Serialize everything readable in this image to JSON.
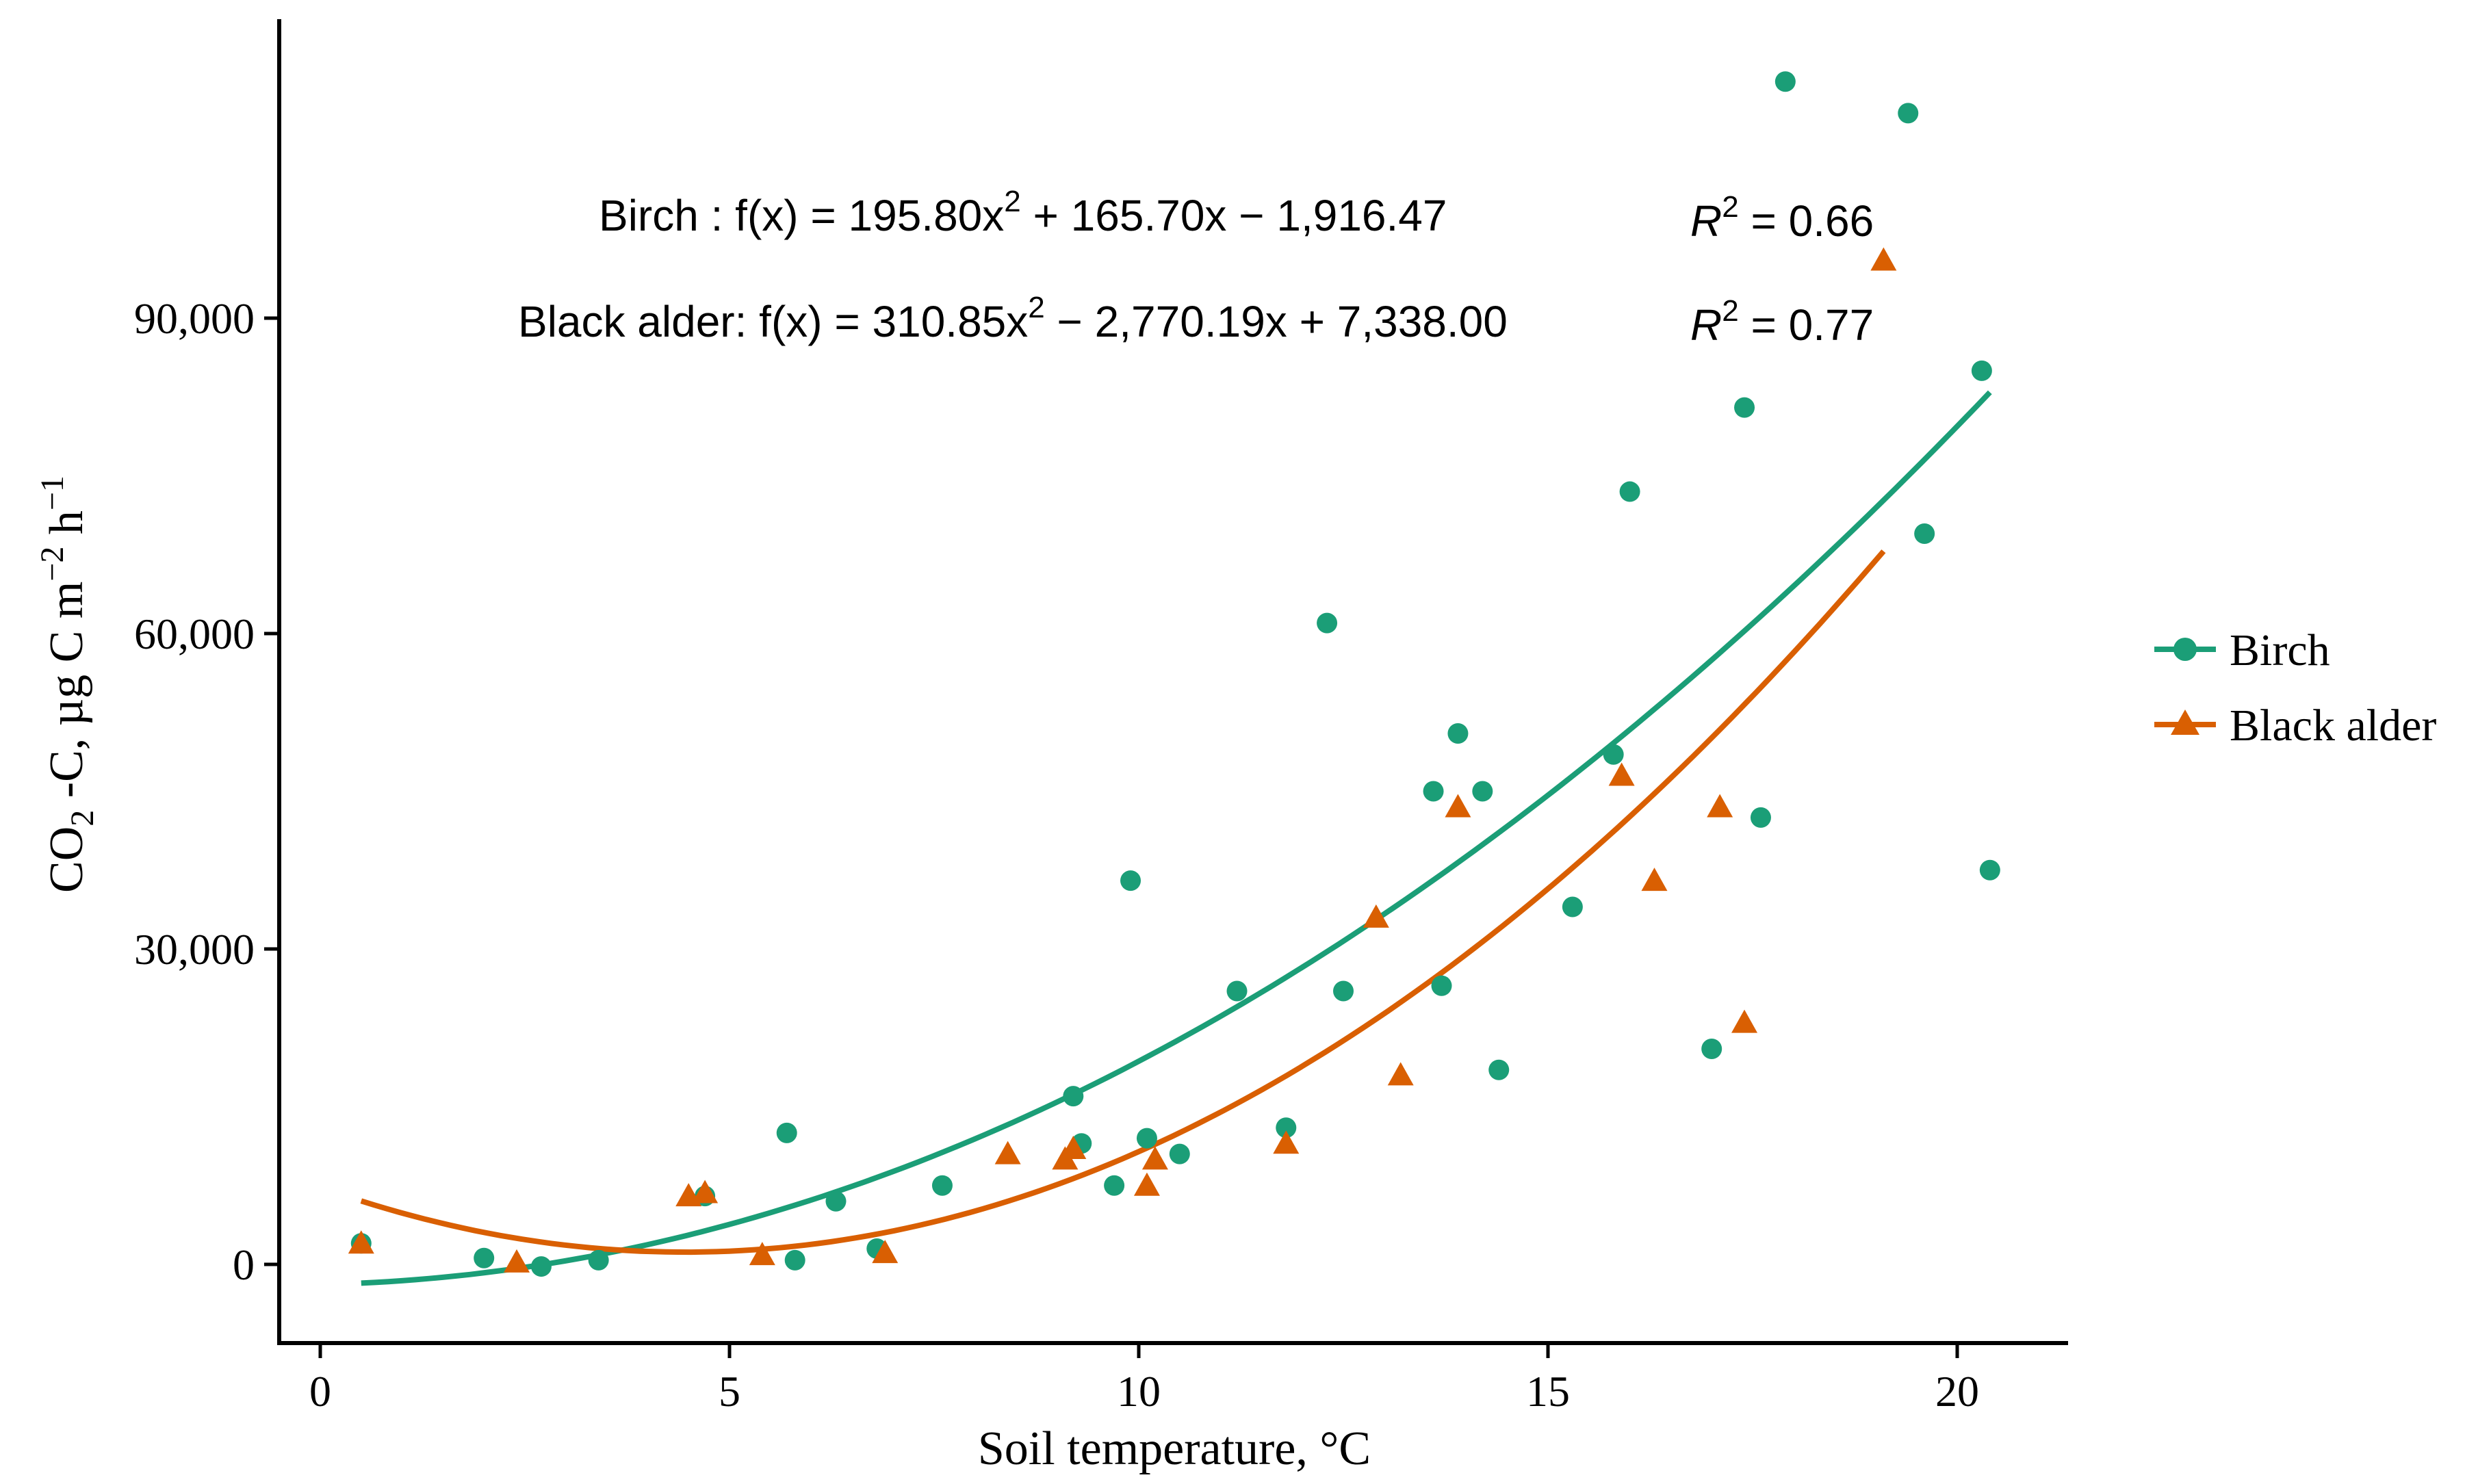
{
  "chart_data": {
    "type": "scatter",
    "title": "",
    "xlabel": "Soil temperature, °C",
    "ylabel": {
      "pre": "CO",
      "sub": "2",
      "mid": " -C, µg C m",
      "sup1": "−2",
      "mid2": " h",
      "sup2": "−1"
    },
    "xlim": [
      -0.5,
      21.5
    ],
    "ylim": [
      -8000,
      118000
    ],
    "x_ticks": [
      0,
      5,
      10,
      15,
      20
    ],
    "x_tick_labels": [
      "0",
      "5",
      "10",
      "15",
      "20"
    ],
    "y_ticks": [
      0,
      30000,
      60000,
      90000
    ],
    "y_tick_labels": [
      "0",
      "30,000",
      "60,000",
      "90,000"
    ],
    "grid": false,
    "legend_position": "right",
    "series": [
      {
        "name": "Birch",
        "color": "#1b9e77",
        "marker": "circle",
        "fit": {
          "a": 195.8,
          "b": 165.7,
          "c": -1916.47,
          "x_range": [
            0.5,
            20.4
          ]
        },
        "equation": {
          "prefix": "Birch : f(x) = 195.80x",
          "exp": "2",
          "suffix": " + 165.70x − 1,916.47"
        },
        "r2": {
          "label": "R",
          "exp": "2",
          "value": " = 0.66"
        },
        "points": [
          [
            0.5,
            2000
          ],
          [
            2.0,
            600
          ],
          [
            2.7,
            -200
          ],
          [
            3.4,
            400
          ],
          [
            4.7,
            6500
          ],
          [
            5.7,
            12500
          ],
          [
            5.8,
            400
          ],
          [
            6.3,
            6000
          ],
          [
            6.8,
            1500
          ],
          [
            7.6,
            7500
          ],
          [
            9.2,
            16000
          ],
          [
            9.3,
            11500
          ],
          [
            9.7,
            7500
          ],
          [
            9.9,
            36500
          ],
          [
            10.1,
            12000
          ],
          [
            10.5,
            10500
          ],
          [
            11.2,
            26000
          ],
          [
            11.8,
            13000
          ],
          [
            12.3,
            61000
          ],
          [
            12.5,
            26000
          ],
          [
            13.6,
            45000
          ],
          [
            13.7,
            26500
          ],
          [
            13.9,
            50500
          ],
          [
            14.2,
            45000
          ],
          [
            14.4,
            18500
          ],
          [
            15.3,
            34000
          ],
          [
            15.8,
            48500
          ],
          [
            16.0,
            73500
          ],
          [
            17.0,
            20500
          ],
          [
            17.4,
            81500
          ],
          [
            17.6,
            42500
          ],
          [
            17.9,
            112500
          ],
          [
            19.4,
            109500
          ],
          [
            19.6,
            69500
          ],
          [
            20.3,
            85000
          ],
          [
            20.4,
            37500
          ]
        ]
      },
      {
        "name": "Black alder",
        "color": "#d95f02",
        "marker": "triangle",
        "fit": {
          "a": 310.85,
          "b": -2770.19,
          "c": 7338.0,
          "x_range": [
            0.5,
            19.1
          ]
        },
        "equation": {
          "prefix": "Black alder: f(x) = 310.85x",
          "exp": "2",
          "suffix": " − 2,770.19x + 7,338.00"
        },
        "r2": {
          "label": "R",
          "exp": "2",
          "value": " = 0.77"
        },
        "points": [
          [
            0.5,
            2000
          ],
          [
            2.4,
            200
          ],
          [
            4.5,
            6500
          ],
          [
            4.7,
            6800
          ],
          [
            5.4,
            900
          ],
          [
            6.9,
            1100
          ],
          [
            8.4,
            10500
          ],
          [
            9.1,
            10000
          ],
          [
            9.2,
            11000
          ],
          [
            10.1,
            7500
          ],
          [
            10.2,
            10000
          ],
          [
            11.8,
            11500
          ],
          [
            12.9,
            33000
          ],
          [
            13.2,
            18000
          ],
          [
            13.9,
            43500
          ],
          [
            15.9,
            46500
          ],
          [
            16.3,
            36500
          ],
          [
            17.1,
            43500
          ],
          [
            17.4,
            23000
          ],
          [
            19.1,
            95500
          ]
        ]
      }
    ]
  }
}
